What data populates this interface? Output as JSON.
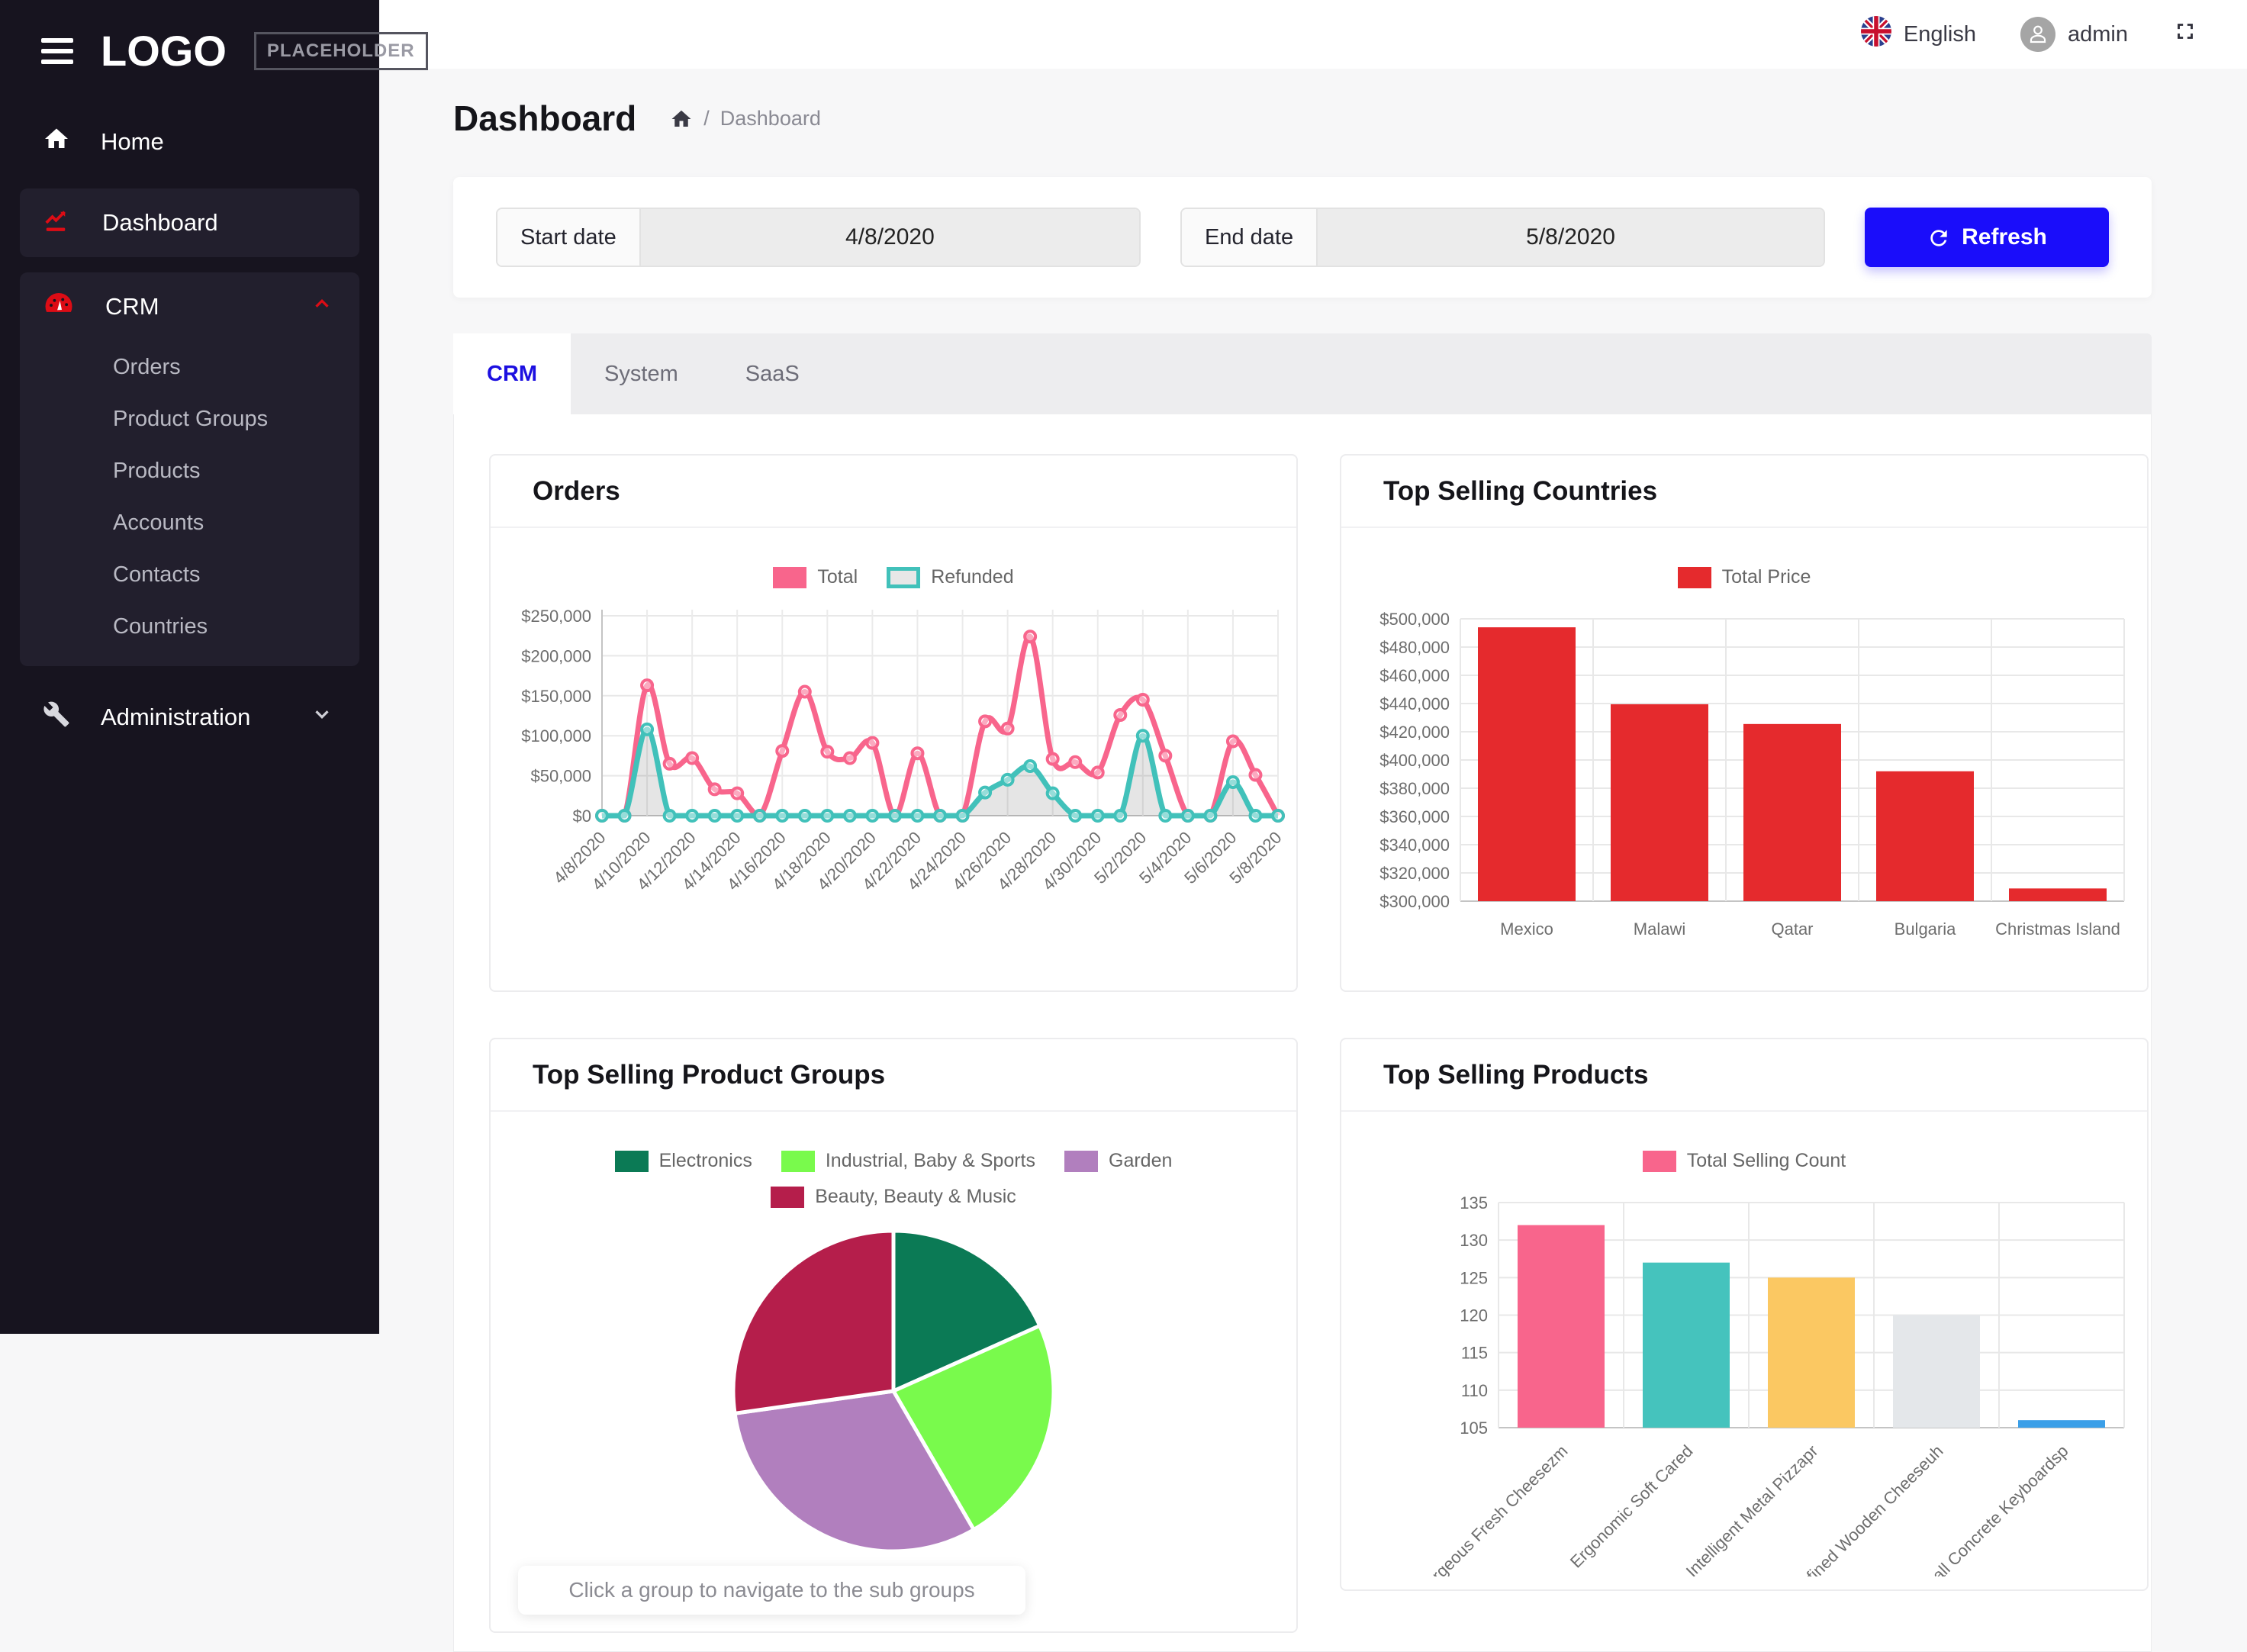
{
  "topbar": {
    "language": "English",
    "user": "admin"
  },
  "icons": {
    "menu": "hamburger",
    "language": "uk-flag",
    "user": "person-circle",
    "fullscreen": "expand-corners",
    "home": "house",
    "dashboard": "line-chart",
    "crm": "gauge",
    "administration": "wrench",
    "crm_expand": "chevron-up",
    "admin_expand": "chevron-down",
    "refresh": "sync-arrows",
    "breadcrumb_home": "house"
  },
  "sidebar": {
    "logo": "LOGO",
    "logo_badge": "PLACEHOLDER",
    "home": "Home",
    "dashboard": "Dashboard",
    "crm": "CRM",
    "crm_children": [
      "Orders",
      "Product Groups",
      "Products",
      "Accounts",
      "Contacts",
      "Countries"
    ],
    "administration": "Administration"
  },
  "header": {
    "title": "Dashboard",
    "breadcrumb_sep": "/",
    "breadcrumb_current": "Dashboard"
  },
  "filters": {
    "start_label": "Start date",
    "start_value": "4/8/2020",
    "end_label": "End date",
    "end_value": "5/8/2020",
    "refresh_label": "Refresh"
  },
  "tabs": {
    "items": [
      {
        "label": "CRM",
        "active": true
      },
      {
        "label": "System",
        "active": false
      },
      {
        "label": "SaaS",
        "active": false
      }
    ]
  },
  "cards": {
    "orders": {
      "title": "Orders"
    },
    "countries": {
      "title": "Top Selling Countries"
    },
    "groups": {
      "title": "Top Selling Product Groups",
      "note": "Click a group to navigate to the sub groups"
    },
    "products": {
      "title": "Top Selling Products"
    }
  },
  "chart_data": [
    {
      "id": "orders",
      "type": "line",
      "title": "Orders",
      "x": [
        "4/8/2020",
        "4/9/2020",
        "4/10/2020",
        "4/11/2020",
        "4/12/2020",
        "4/13/2020",
        "4/14/2020",
        "4/15/2020",
        "4/16/2020",
        "4/17/2020",
        "4/18/2020",
        "4/19/2020",
        "4/20/2020",
        "4/21/2020",
        "4/22/2020",
        "4/23/2020",
        "4/24/2020",
        "4/25/2020",
        "4/26/2020",
        "4/27/2020",
        "4/28/2020",
        "4/29/2020",
        "4/30/2020",
        "5/1/2020",
        "5/2/2020",
        "5/3/2020",
        "5/4/2020",
        "5/5/2020",
        "5/6/2020",
        "5/7/2020",
        "5/8/2020"
      ],
      "x_tick_every": 2,
      "ylim": [
        0,
        250000
      ],
      "ytick": 50000,
      "yformat": "currency",
      "grid": true,
      "legend_position": "top",
      "series": [
        {
          "name": "Total",
          "color": "#f8658c",
          "values": [
            0,
            0,
            163000,
            65000,
            72000,
            33000,
            28000,
            0,
            81000,
            155000,
            80000,
            72000,
            91000,
            0,
            78000,
            0,
            0,
            118000,
            109000,
            224000,
            71000,
            67000,
            54000,
            126000,
            145000,
            75000,
            0,
            0,
            93000,
            51000,
            0
          ]
        },
        {
          "name": "Refunded",
          "color": "#41c1ba",
          "swatch": "outline",
          "fill": "rgba(0,0,0,0.10)",
          "values": [
            0,
            0,
            108000,
            0,
            0,
            0,
            0,
            0,
            0,
            0,
            0,
            0,
            0,
            0,
            0,
            0,
            0,
            29000,
            45000,
            62000,
            28000,
            0,
            0,
            0,
            100000,
            0,
            0,
            0,
            42000,
            0,
            0
          ]
        }
      ]
    },
    {
      "id": "countries",
      "type": "bar",
      "title": "Top Selling Countries",
      "categories": [
        "Mexico",
        "Malawi",
        "Qatar",
        "Bulgaria",
        "Christmas Island"
      ],
      "ylim": [
        300000,
        500000
      ],
      "ytick": 20000,
      "yformat": "currency",
      "grid": true,
      "series": [
        {
          "name": "Total Price",
          "color": "#e52a2d",
          "values": [
            494000,
            439500,
            425500,
            392000,
            309000
          ]
        }
      ]
    },
    {
      "id": "groups",
      "type": "pie",
      "title": "Top Selling Product Groups",
      "note": "Click a group to navigate to the sub groups",
      "slices": [
        {
          "name": "Electronics",
          "color": "#0b7a55",
          "value": 18.3
        },
        {
          "name": "Industrial, Baby & Sports",
          "color": "#79fa4c",
          "value": 23.3
        },
        {
          "name": "Garden",
          "color": "#b17fbe",
          "value": 31.1
        },
        {
          "name": "Beauty, Beauty & Music",
          "color": "#b51e4b",
          "value": 27.2
        }
      ]
    },
    {
      "id": "products",
      "type": "bar",
      "title": "Top Selling Products",
      "categories": [
        "Gorgeous Fresh Cheesezm",
        "Ergonomic Soft Cared",
        "Intelligent Metal Pizzapr",
        "Refined Wooden Cheeseuh",
        "Small Concrete Keyboardsp"
      ],
      "ylim": [
        105,
        135
      ],
      "ytick": 5,
      "yformat": "number",
      "grid": true,
      "x_labels_rotated": true,
      "series": [
        {
          "name": "Total Selling Count",
          "color": "#f8658c",
          "colors": [
            "#f8658c",
            "#45c3bd",
            "#fbc862",
            "#e4e7ea",
            "#3b9fe8"
          ],
          "values": [
            132,
            127,
            125,
            120,
            106
          ]
        }
      ]
    }
  ]
}
